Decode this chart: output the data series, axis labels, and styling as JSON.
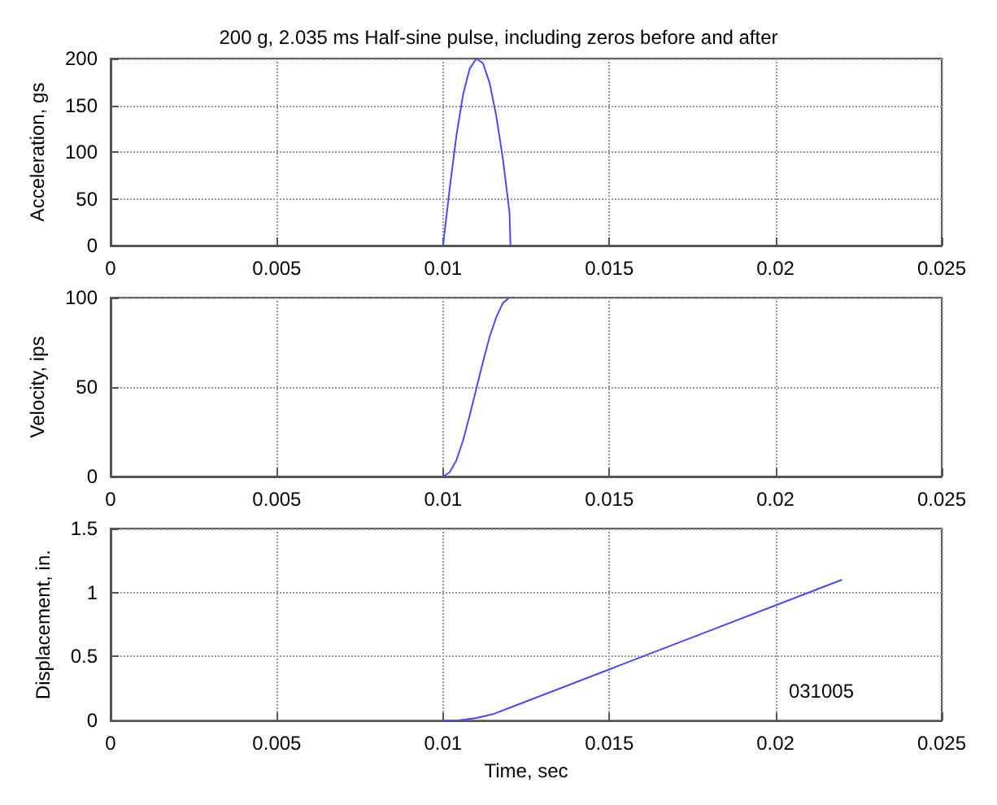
{
  "chart_data": [
    {
      "type": "line",
      "title": "200 g, 2.035 ms Half-sine pulse, including zeros before and after",
      "ylabel": "Acceleration, gs",
      "color": "#4b4bf5",
      "grid": true,
      "x": [
        0.01,
        0.0102,
        0.0104,
        0.0106,
        0.0108,
        0.011,
        0.0112,
        0.0114,
        0.0116,
        0.0118,
        0.012,
        0.01203
      ],
      "values": [
        0,
        61,
        117,
        161,
        189,
        200,
        195,
        174,
        139,
        93,
        35,
        0
      ],
      "xlim": [
        0,
        0.025
      ],
      "xticks": [
        0,
        0.005,
        0.01,
        0.015,
        0.02,
        0.025
      ],
      "ylim": [
        0,
        200
      ],
      "yticks": [
        0,
        50,
        100,
        150,
        200
      ]
    },
    {
      "type": "line",
      "ylabel": "Velocity, ips",
      "color": "#4b4bf5",
      "grid": true,
      "x": [
        0.01,
        0.0102,
        0.0104,
        0.0106,
        0.0108,
        0.011,
        0.0112,
        0.0114,
        0.0116,
        0.0118,
        0.012,
        0.01203
      ],
      "values": [
        0,
        2.4,
        9,
        20,
        34,
        49,
        64,
        78,
        89,
        97,
        100,
        100
      ],
      "xlim": [
        0,
        0.025
      ],
      "xticks": [
        0,
        0.005,
        0.01,
        0.015,
        0.02,
        0.025
      ],
      "ylim": [
        0,
        100
      ],
      "yticks": [
        0,
        50,
        100
      ]
    },
    {
      "type": "line",
      "ylabel": "Displacement, in.",
      "xlabel": "Time, sec",
      "annotations": [
        "031005"
      ],
      "color": "#4b4bf5",
      "grid": true,
      "x": [
        0.01,
        0.0105,
        0.011,
        0.0115,
        0.012,
        0.015,
        0.02,
        0.022
      ],
      "values": [
        0,
        0.003,
        0.02,
        0.05,
        0.1,
        0.4,
        0.9,
        1.1
      ],
      "xlim": [
        0,
        0.025
      ],
      "xticks": [
        0,
        0.005,
        0.01,
        0.015,
        0.02,
        0.025
      ],
      "ylim": [
        0,
        1.5
      ],
      "yticks": [
        0,
        0.5,
        1,
        1.5
      ]
    }
  ]
}
